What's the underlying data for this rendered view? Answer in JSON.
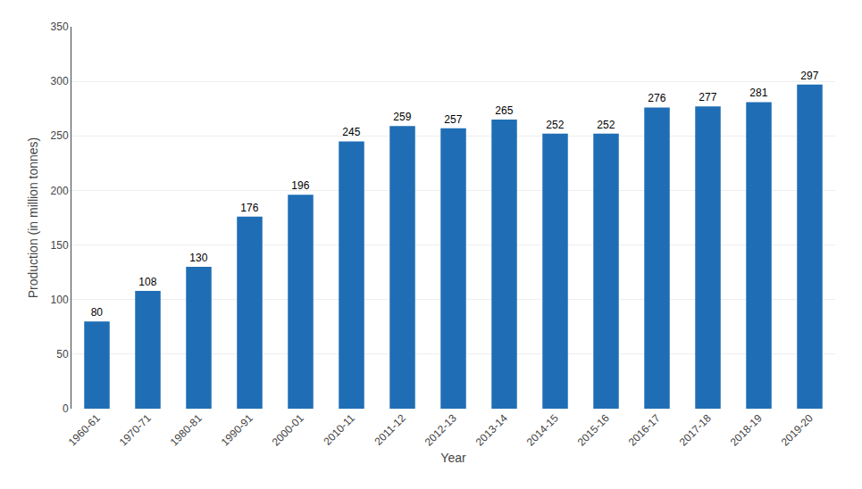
{
  "chart_data": {
    "type": "bar",
    "categories": [
      "1960-61",
      "1970-71",
      "1980-81",
      "1990-91",
      "2000-01",
      "2010-11",
      "2011-12",
      "2012-13",
      "2013-14",
      "2014-15",
      "2015-16",
      "2016-17",
      "2017-18",
      "2018-19",
      "2019-20"
    ],
    "values": [
      80,
      108,
      130,
      176,
      196,
      245,
      259,
      257,
      265,
      252,
      252,
      276,
      277,
      281,
      297
    ],
    "color": "#1F6EB5",
    "xlabel": "Year",
    "ylabel": "Production (in million tonnes)",
    "ylim": [
      0,
      350
    ],
    "yticks": [
      0,
      50,
      100,
      150,
      200,
      250,
      300,
      350
    ],
    "grid": true,
    "data_labels": true
  }
}
